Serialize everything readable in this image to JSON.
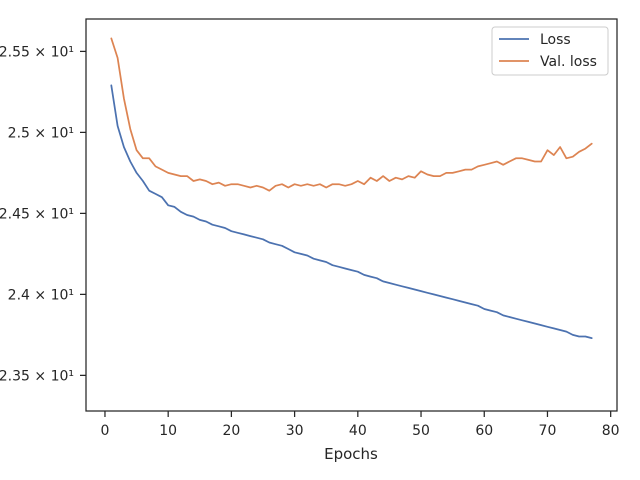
{
  "chart_data": {
    "type": "line",
    "title": "",
    "xlabel": "Epochs",
    "ylabel": "",
    "xlim": [
      -3,
      81
    ],
    "ylim": [
      23.28,
      25.7
    ],
    "x_ticks": [
      0,
      10,
      20,
      30,
      40,
      50,
      60,
      70,
      80
    ],
    "y_ticks": [
      {
        "value": 23.5,
        "label": "2.35 × 10¹"
      },
      {
        "value": 24.0,
        "label": "2.4 × 10¹"
      },
      {
        "value": 24.5,
        "label": "2.45 × 10¹"
      },
      {
        "value": 25.0,
        "label": "2.5 × 10¹"
      },
      {
        "value": 25.5,
        "label": "2.55 × 10¹"
      }
    ],
    "x_tick_labels": [
      "0",
      "10",
      "20",
      "30",
      "40",
      "50",
      "60",
      "70",
      "80"
    ],
    "grid": false,
    "legend_position": "top-right",
    "x": [
      1,
      2,
      3,
      4,
      5,
      6,
      7,
      8,
      9,
      10,
      11,
      12,
      13,
      14,
      15,
      16,
      17,
      18,
      19,
      20,
      21,
      22,
      23,
      24,
      25,
      26,
      27,
      28,
      29,
      30,
      31,
      32,
      33,
      34,
      35,
      36,
      37,
      38,
      39,
      40,
      41,
      42,
      43,
      44,
      45,
      46,
      47,
      48,
      49,
      50,
      51,
      52,
      53,
      54,
      55,
      56,
      57,
      58,
      59,
      60,
      61,
      62,
      63,
      64,
      65,
      66,
      67,
      68,
      69,
      70,
      71,
      72,
      73,
      74,
      75,
      76,
      77
    ],
    "series": [
      {
        "name": "Loss",
        "color": "#4c72b0",
        "values": [
          25.29,
          25.04,
          24.91,
          24.82,
          24.75,
          24.7,
          24.64,
          24.62,
          24.6,
          24.55,
          24.54,
          24.51,
          24.49,
          24.48,
          24.46,
          24.45,
          24.43,
          24.42,
          24.41,
          24.39,
          24.38,
          24.37,
          24.36,
          24.35,
          24.34,
          24.32,
          24.31,
          24.3,
          24.28,
          24.26,
          24.25,
          24.24,
          24.22,
          24.21,
          24.2,
          24.18,
          24.17,
          24.16,
          24.15,
          24.14,
          24.12,
          24.11,
          24.1,
          24.08,
          24.07,
          24.06,
          24.05,
          24.04,
          24.03,
          24.02,
          24.01,
          24.0,
          23.99,
          23.98,
          23.97,
          23.96,
          23.95,
          23.94,
          23.93,
          23.91,
          23.9,
          23.89,
          23.87,
          23.86,
          23.85,
          23.84,
          23.83,
          23.82,
          23.81,
          23.8,
          23.79,
          23.78,
          23.77,
          23.75,
          23.74,
          23.74,
          23.73
        ]
      },
      {
        "name": "Val. loss",
        "color": "#dd8452",
        "values": [
          25.58,
          25.46,
          25.21,
          25.02,
          24.89,
          24.84,
          24.84,
          24.79,
          24.77,
          24.75,
          24.74,
          24.73,
          24.73,
          24.7,
          24.71,
          24.7,
          24.68,
          24.69,
          24.67,
          24.68,
          24.68,
          24.67,
          24.66,
          24.67,
          24.66,
          24.64,
          24.67,
          24.68,
          24.66,
          24.68,
          24.67,
          24.68,
          24.67,
          24.68,
          24.66,
          24.68,
          24.68,
          24.67,
          24.68,
          24.7,
          24.68,
          24.72,
          24.7,
          24.73,
          24.7,
          24.72,
          24.71,
          24.73,
          24.72,
          24.76,
          24.74,
          24.73,
          24.73,
          24.75,
          24.75,
          24.76,
          24.77,
          24.77,
          24.79,
          24.8,
          24.81,
          24.82,
          24.8,
          24.82,
          24.84,
          24.84,
          24.83,
          24.82,
          24.82,
          24.89,
          24.86,
          24.91,
          24.84,
          24.85,
          24.88,
          24.9,
          24.93
        ]
      }
    ]
  }
}
